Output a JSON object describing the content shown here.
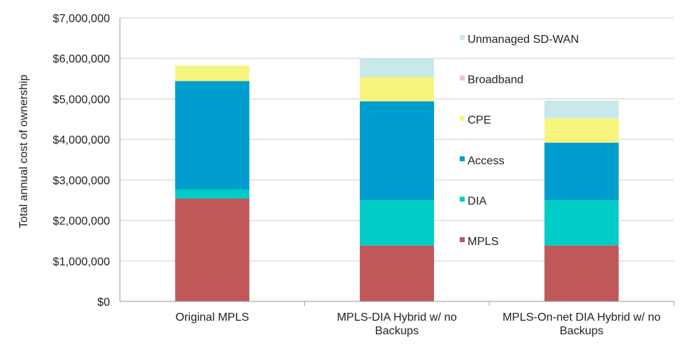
{
  "chart_data": {
    "type": "bar",
    "stacked": true,
    "title": "",
    "xlabel": "",
    "ylabel": "Total annual cost of ownership",
    "ylim": [
      0,
      7000000
    ],
    "yticks": [
      "$0",
      "$1,000,000",
      "$2,000,000",
      "$3,000,000",
      "$4,000,000",
      "$5,000,000",
      "$6,000,000",
      "$7,000,000"
    ],
    "ytick_values": [
      0,
      1000000,
      2000000,
      3000000,
      4000000,
      5000000,
      6000000,
      7000000
    ],
    "grid": true,
    "legend_position": "right",
    "categories": [
      [
        "Original MPLS"
      ],
      [
        "MPLS-DIA Hybrid w/ no",
        "Backups"
      ],
      [
        "MPLS-On-net DIA Hybrid w/ no",
        "Backups"
      ]
    ],
    "series": [
      {
        "name": "MPLS",
        "color": "#c0585a",
        "values": [
          2540000,
          1380000,
          1380000
        ]
      },
      {
        "name": "DIA",
        "color": "#00cdc8",
        "values": [
          220000,
          1120000,
          1120000
        ]
      },
      {
        "name": "Access",
        "color": "#009ece",
        "values": [
          2680000,
          2440000,
          1420000
        ]
      },
      {
        "name": "CPE",
        "color": "#f8f57e",
        "values": [
          380000,
          600000,
          600000
        ]
      },
      {
        "name": "Broadband",
        "color": "#f4c4c4",
        "values": [
          0,
          0,
          0
        ]
      },
      {
        "name": "Unmanaged SD-WAN",
        "color": "#c8e8ea",
        "values": [
          0,
          460000,
          440000
        ]
      }
    ],
    "legend_order": [
      "Unmanaged SD-WAN",
      "Broadband",
      "CPE",
      "Access",
      "DIA",
      "MPLS"
    ]
  }
}
